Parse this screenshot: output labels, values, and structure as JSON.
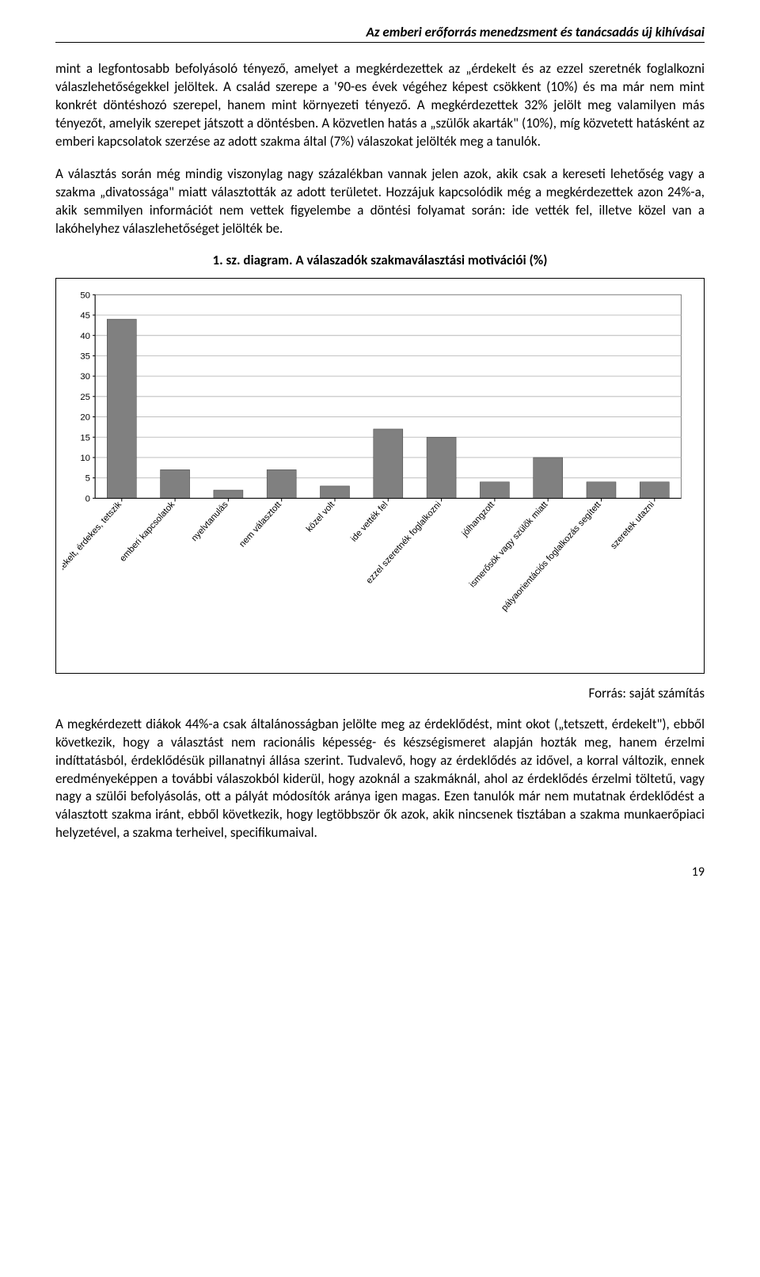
{
  "header": {
    "title": "Az emberi erőforrás menedzsment és tanácsadás új kihívásai"
  },
  "paragraphs": {
    "p1": "mint a legfontosabb befolyásoló tényező, amelyet a megkérdezettek az „érdekelt és az ezzel szeretnék foglalkozni válaszlehetőségekkel jelöltek. A család szerepe a '90-es évek végéhez képest csökkent (10%) és ma már nem mint konkrét döntéshozó szerepel, hanem mint környezeti tényező. A megkérdezettek 32% jelölt meg valamilyen más tényezőt, amelyik szerepet játszott a döntésben. A közvetlen hatás a „szülők akarták\" (10%), míg közvetett hatásként az emberi kapcsolatok szerzése az adott szakma által (7%) válaszokat jelölték meg a tanulók.",
    "p2": "A választás során még mindig viszonylag nagy százalékban vannak jelen azok, akik csak a kereseti lehetőség vagy a szakma „divatossága\" miatt választották az adott területet. Hozzájuk kapcsolódik még a megkérdezettek azon 24%-a, akik semmilyen információt nem vettek figyelembe a döntési folyamat során: ide vették fel, illetve közel van a lakóhelyhez válaszlehetőséget jelölték be.",
    "p3": "A megkérdezett diákok 44%-a csak általánosságban jelölte meg az érdeklődést, mint okot („tetszett, érdekelt\"), ebből következik, hogy a választást nem racionális képesség- és készségismeret alapján hozták meg, hanem érzelmi indíttatásból, érdeklődésük pillanatnyi állása szerint. Tudvalevő, hogy az érdeklődés az idővel, a korral változik, ennek eredményeképpen a további válaszokból kiderül, hogy azoknál a szakmáknál, ahol az érdeklődés érzelmi töltetű, vagy nagy a szülői befolyásolás, ott a pályát módosítók aránya igen magas. Ezen tanulók már nem mutatnak érdeklődést a választott szakma iránt, ebből következik, hogy legtöbbször ők azok, akik nincsenek tisztában a szakma munkaerőpiaci helyzetével, a szakma terheivel, specifikumaival."
  },
  "chart": {
    "title": "1.  sz. diagram. A válaszadók szakmaválasztási motivációi (%)",
    "type": "bar",
    "source": "Forrás: saját számítás",
    "categories": [
      "érdekelt, érdekes, tetszik",
      "emberi kapcsolatok",
      "nyelvtanulás",
      "nem választott",
      "közel volt",
      "ide vették fel",
      "ezzel szeretnék foglalkozni",
      "jólhangzott",
      "ismerősök vagy szülők miatt",
      "pályaorientációs foglalkozás segített",
      "szeretek utazni"
    ],
    "values": [
      44,
      7,
      2,
      7,
      3,
      17,
      15,
      4,
      10,
      4,
      4
    ],
    "ylim": [
      0,
      50
    ],
    "ytick_step": 5,
    "bar_color": "#808080",
    "background_color": "#ffffff",
    "grid_color": "#c0c0c0",
    "axis_color": "#000000",
    "label_color": "#000000",
    "plot_border_color": "#808080",
    "label_fontsize": 11,
    "tick_fontsize": 11,
    "bar_width_ratio": 0.55
  },
  "page_number": "19"
}
